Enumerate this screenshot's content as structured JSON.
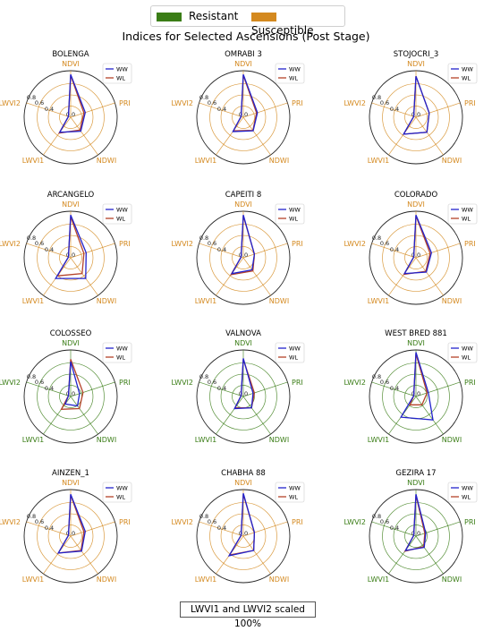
{
  "legend": {
    "items": [
      {
        "label": "Resistant",
        "color": "#3a7d16"
      },
      {
        "label": "Susceptible",
        "color": "#d4891f"
      }
    ]
  },
  "title": "Indices for Selected Ascensions (Post Stage)",
  "footnote": "LWVI1 and LWVI2 scaled 100%",
  "chart_data": {
    "type": "radar",
    "axes": [
      "NDVI",
      "PRI",
      "NDWI",
      "LWVI1",
      "LWVI2"
    ],
    "radial_ticks": [
      "0.0",
      "0.4",
      "0.6",
      "0.8"
    ],
    "radial_range": [
      0,
      1
    ],
    "series_legend": [
      {
        "name": "WW",
        "color": "#2222cc"
      },
      {
        "name": "WL",
        "color": "#b5432a"
      }
    ],
    "charts": [
      {
        "name": "BOLENGA",
        "group": "Susceptible",
        "WW": [
          0.92,
          0.33,
          0.37,
          0.4,
          0.05
        ],
        "WL": [
          0.9,
          0.3,
          0.34,
          0.42,
          0.05
        ]
      },
      {
        "name": "OMRABI 3",
        "group": "Susceptible",
        "WW": [
          0.92,
          0.32,
          0.36,
          0.38,
          0.05
        ],
        "WL": [
          0.9,
          0.3,
          0.35,
          0.36,
          0.05
        ]
      },
      {
        "name": "STOJOCRI_3",
        "group": "Susceptible",
        "WW": [
          0.88,
          0.3,
          0.4,
          0.45,
          0.05
        ],
        "WL": [
          0.88,
          0.3,
          0.4,
          0.45,
          0.05
        ]
      },
      {
        "name": "ARCANGELO",
        "group": "Susceptible",
        "WW": [
          0.92,
          0.35,
          0.55,
          0.55,
          0.05
        ],
        "WL": [
          0.88,
          0.3,
          0.42,
          0.48,
          0.05
        ]
      },
      {
        "name": "CAPEITI 8",
        "group": "Susceptible",
        "WW": [
          0.92,
          0.25,
          0.32,
          0.42,
          0.05
        ],
        "WL": [
          0.9,
          0.25,
          0.35,
          0.45,
          0.05
        ]
      },
      {
        "name": "COLORADO",
        "group": "Susceptible",
        "WW": [
          0.92,
          0.35,
          0.38,
          0.42,
          0.05
        ],
        "WL": [
          0.9,
          0.32,
          0.36,
          0.44,
          0.05
        ]
      },
      {
        "name": "COLOSSEO",
        "group": "Resistant",
        "WW": [
          0.75,
          0.2,
          0.25,
          0.2,
          0.05
        ],
        "WL": [
          0.8,
          0.28,
          0.32,
          0.34,
          0.05
        ]
      },
      {
        "name": "VALNOVA",
        "group": "Resistant",
        "WW": [
          0.82,
          0.22,
          0.3,
          0.32,
          0.05
        ],
        "WL": [
          0.8,
          0.25,
          0.3,
          0.3,
          0.05
        ]
      },
      {
        "name": "WEST BRED 881",
        "group": "Resistant",
        "WW": [
          0.95,
          0.28,
          0.62,
          0.55,
          0.05
        ],
        "WL": [
          0.92,
          0.25,
          0.22,
          0.22,
          0.05
        ]
      },
      {
        "name": "AINZEN_1",
        "group": "Susceptible",
        "WW": [
          0.9,
          0.33,
          0.4,
          0.45,
          0.05
        ],
        "WL": [
          0.88,
          0.3,
          0.38,
          0.45,
          0.05
        ]
      },
      {
        "name": "CHABHA 88",
        "group": "Susceptible",
        "WW": [
          0.92,
          0.25,
          0.38,
          0.52,
          0.05
        ],
        "WL": [
          0.9,
          0.25,
          0.38,
          0.5,
          0.05
        ]
      },
      {
        "name": "GEZIRA 17",
        "group": "Resistant",
        "WW": [
          0.9,
          0.22,
          0.3,
          0.38,
          0.05
        ],
        "WL": [
          0.88,
          0.2,
          0.28,
          0.4,
          0.05
        ]
      }
    ]
  }
}
